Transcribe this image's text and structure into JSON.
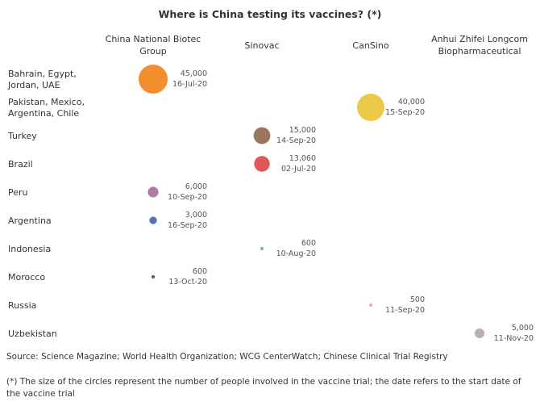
{
  "chart_data": {
    "type": "bubble",
    "title": "Where is China testing its vaccines? (*)",
    "columns": [
      "China National Biotec Group",
      "Sinovac",
      "CanSino",
      "Anhui Zhifei Longcom Biopharmaceutical"
    ],
    "column_lines": [
      [
        "China National Biotec",
        "Group"
      ],
      [
        "Sinovac"
      ],
      [
        "CanSino"
      ],
      [
        "Anhui Zhifei Longcom",
        "Biopharmaceutical"
      ]
    ],
    "rows": [
      {
        "lines": [
          "Bahrain, Egypt,",
          "Jordan, UAE"
        ]
      },
      {
        "lines": [
          "Pakistan, Mexico,",
          "Argentina, Chile"
        ]
      },
      {
        "lines": [
          "Turkey"
        ]
      },
      {
        "lines": [
          "Brazil"
        ]
      },
      {
        "lines": [
          "Peru"
        ]
      },
      {
        "lines": [
          "Argentina"
        ]
      },
      {
        "lines": [
          "Indonesia"
        ]
      },
      {
        "lines": [
          "Morocco"
        ]
      },
      {
        "lines": [
          "Russia"
        ]
      },
      {
        "lines": [
          "Uzbekistan"
        ]
      }
    ],
    "points": [
      {
        "row": 0,
        "col": 0,
        "participants": 45000,
        "label": "45,000",
        "date": "16-Jul-20",
        "color": "#f28e2b"
      },
      {
        "row": 1,
        "col": 2,
        "participants": 40000,
        "label": "40,000",
        "date": "15-Sep-20",
        "color": "#edc948"
      },
      {
        "row": 2,
        "col": 1,
        "participants": 15000,
        "label": "15,000",
        "date": "14-Sep-20",
        "color": "#9c755f"
      },
      {
        "row": 3,
        "col": 1,
        "participants": 13060,
        "label": "13,060",
        "date": "02-Jul-20",
        "color": "#e15759"
      },
      {
        "row": 4,
        "col": 0,
        "participants": 6000,
        "label": "6,000",
        "date": "10-Sep-20",
        "color": "#b07aa1"
      },
      {
        "row": 5,
        "col": 0,
        "participants": 3000,
        "label": "3,000",
        "date": "16-Sep-20",
        "color": "#4e79a7"
      },
      {
        "row": 6,
        "col": 1,
        "participants": 600,
        "label": "600",
        "date": "10-Aug-20",
        "color": "#76b7b2"
      },
      {
        "row": 7,
        "col": 0,
        "participants": 600,
        "label": "600",
        "date": "13-Oct-20",
        "color": "#59595f"
      },
      {
        "row": 8,
        "col": 2,
        "participants": 500,
        "label": "500",
        "date": "11-Sep-20",
        "color": "#ff9d9a"
      },
      {
        "row": 9,
        "col": 3,
        "participants": 5000,
        "label": "5,000",
        "date": "11-Nov-20",
        "color": "#bab0ac"
      }
    ],
    "size_encoding": "area proportional to number of participants"
  },
  "source_text": "Source: Science Magazine; World Health Organization; WCG CenterWatch; Chinese Clinical Trial Registry",
  "footnote_text": "(*) The size of the circles represent the number of people involved in the vaccine trial; the date refers to the start date of the vaccine trial"
}
